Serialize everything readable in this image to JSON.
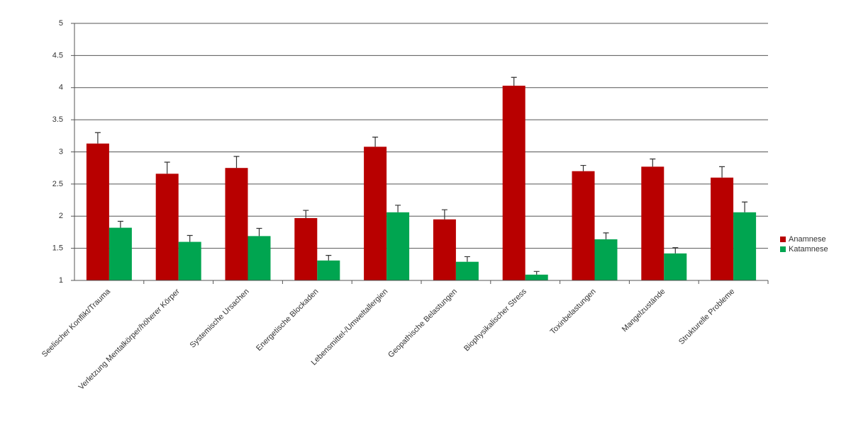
{
  "chart_data": {
    "type": "bar",
    "categories": [
      "Seelischer Konflikt/Trauma",
      "Verletzung Mentalkörper/höherer Körper",
      "Systemische Ursachen",
      "Energetische Blockaden",
      "Lebensmittel-/Umweltallergien",
      "Geopathische Belastungen",
      "Biophysikalischer Stress",
      "Toxinbelastungen",
      "Mangelzustände",
      "Strukturelle Probleme"
    ],
    "series": [
      {
        "name": "Anamnese",
        "color": "#b80000",
        "values": [
          3.13,
          2.66,
          2.75,
          1.97,
          3.08,
          1.95,
          4.03,
          2.7,
          2.77,
          2.6
        ],
        "errors": [
          0.17,
          0.18,
          0.18,
          0.12,
          0.15,
          0.15,
          0.13,
          0.09,
          0.12,
          0.17
        ]
      },
      {
        "name": "Katamnese",
        "color": "#00a550",
        "values": [
          1.82,
          1.6,
          1.69,
          1.31,
          2.06,
          1.29,
          1.09,
          1.64,
          1.42,
          2.06
        ],
        "errors": [
          0.1,
          0.1,
          0.12,
          0.08,
          0.11,
          0.08,
          0.05,
          0.1,
          0.09,
          0.16
        ]
      }
    ],
    "ylim": [
      1,
      5
    ],
    "yticks": [
      1,
      1.5,
      2,
      2.5,
      3,
      3.5,
      4,
      4.5,
      5
    ],
    "grid": true,
    "legend": "right"
  }
}
